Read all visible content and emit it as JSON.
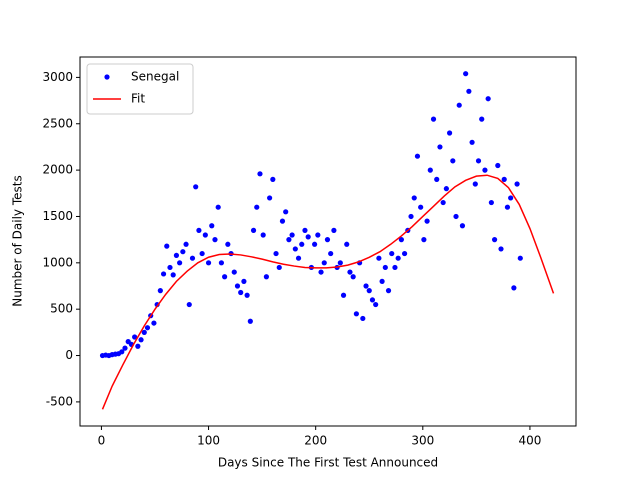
{
  "chart_data": {
    "type": "scatter",
    "xlabel": "Days Since The First Test Announced",
    "ylabel": "Number of Daily Tests",
    "xlim": [
      -20,
      443
    ],
    "ylim": [
      -760,
      3220
    ],
    "xticks": [
      0,
      100,
      200,
      300,
      400
    ],
    "yticks": [
      -500,
      0,
      500,
      1000,
      1500,
      2000,
      2500,
      3000
    ],
    "legend": "upper left",
    "series": [
      {
        "name": "Senegal",
        "color": "#0000ff",
        "mode": "markers",
        "x": [
          1,
          4,
          7,
          10,
          13,
          16,
          19,
          22,
          25,
          28,
          31,
          34,
          37,
          40,
          43,
          46,
          49,
          52,
          55,
          58,
          61,
          64,
          67,
          70,
          73,
          76,
          79,
          82,
          85,
          88,
          91,
          94,
          97,
          100,
          103,
          106,
          109,
          112,
          115,
          118,
          121,
          124,
          127,
          130,
          133,
          136,
          139,
          142,
          145,
          148,
          151,
          154,
          157,
          160,
          163,
          166,
          169,
          172,
          175,
          178,
          181,
          184,
          187,
          190,
          193,
          196,
          199,
          202,
          205,
          208,
          211,
          214,
          217,
          220,
          223,
          226,
          229,
          232,
          235,
          238,
          241,
          244,
          247,
          250,
          253,
          256,
          259,
          262,
          265,
          268,
          271,
          274,
          277,
          280,
          283,
          286,
          289,
          292,
          295,
          298,
          301,
          304,
          307,
          310,
          313,
          316,
          319,
          322,
          325,
          328,
          331,
          334,
          337,
          340,
          343,
          346,
          349,
          352,
          355,
          358,
          361,
          364,
          367,
          370,
          373,
          376,
          379,
          382,
          385,
          388,
          391
        ],
        "values": [
          0,
          5,
          0,
          10,
          15,
          20,
          40,
          80,
          150,
          120,
          200,
          100,
          170,
          250,
          300,
          430,
          350,
          550,
          700,
          880,
          1180,
          950,
          870,
          1080,
          1000,
          1120,
          1200,
          550,
          1050,
          1820,
          1350,
          1100,
          1300,
          1000,
          1400,
          1250,
          1600,
          1000,
          850,
          1200,
          1100,
          900,
          750,
          680,
          800,
          650,
          370,
          1350,
          1600,
          1960,
          1300,
          850,
          1700,
          1900,
          1100,
          950,
          1450,
          1550,
          1250,
          1300,
          1150,
          1050,
          1200,
          1350,
          1280,
          950,
          1200,
          1300,
          900,
          1000,
          1250,
          1100,
          1350,
          950,
          1000,
          650,
          1200,
          900,
          850,
          450,
          1000,
          400,
          750,
          700,
          600,
          550,
          1050,
          800,
          950,
          700,
          1100,
          950,
          1050,
          1250,
          1100,
          1350,
          1500,
          1700,
          2150,
          1600,
          1250,
          1450,
          2000,
          2550,
          1900,
          2250,
          1650,
          1800,
          2400,
          2100,
          1500,
          2700,
          1400,
          3040,
          2850,
          2300,
          1850,
          2100,
          2550,
          2000,
          2770,
          1650,
          1250,
          2050,
          1150,
          1900,
          1600,
          1700,
          730,
          1850,
          1050
        ]
      },
      {
        "name": "Fit",
        "color": "#ff0000",
        "mode": "line",
        "x": [
          1,
          10,
          20,
          30,
          40,
          50,
          60,
          70,
          80,
          90,
          100,
          110,
          120,
          130,
          140,
          150,
          160,
          170,
          180,
          190,
          200,
          210,
          220,
          230,
          240,
          250,
          260,
          270,
          280,
          290,
          300,
          310,
          320,
          330,
          340,
          350,
          360,
          370,
          380,
          390,
          400,
          410,
          422
        ],
        "values": [
          -580,
          -330,
          -100,
          120,
          320,
          500,
          660,
          800,
          910,
          1000,
          1060,
          1090,
          1095,
          1085,
          1065,
          1040,
          1010,
          985,
          965,
          950,
          945,
          945,
          955,
          975,
          1010,
          1060,
          1120,
          1200,
          1290,
          1390,
          1500,
          1610,
          1720,
          1820,
          1890,
          1935,
          1945,
          1910,
          1810,
          1630,
          1370,
          1060,
          670
        ]
      }
    ]
  }
}
